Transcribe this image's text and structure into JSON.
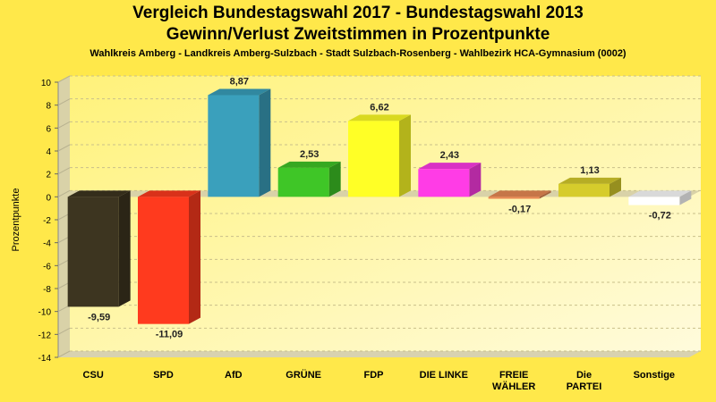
{
  "chart_data": {
    "type": "bar",
    "title": "Vergleich Bundestagswahl 2017 - Bundestagswahl 2013",
    "subtitle": "Gewinn/Verlust Zweitstimmen in Prozentpunkte",
    "caption": "Wahlkreis Amberg - Landkreis Amberg-Sulzbach - Stadt Sulzbach-Rosenberg - Wahlbezirk HCA-Gymnasium (0002)",
    "ylabel": "Prozentpunkte",
    "xlabel": "",
    "ylim": [
      -14,
      10
    ],
    "yticks": [
      "10",
      "8",
      "6",
      "4",
      "2",
      "0",
      "-2",
      "-4",
      "-6",
      "-8",
      "-10",
      "-12",
      "-14"
    ],
    "grid": true,
    "categories": [
      [
        "CSU"
      ],
      [
        "SPD"
      ],
      [
        "AfD"
      ],
      [
        "GRÜNE"
      ],
      [
        "FDP"
      ],
      [
        "DIE LINKE"
      ],
      [
        "FREIE",
        "WÄHLER"
      ],
      [
        "Die",
        "PARTEI"
      ],
      [
        "Sonstige"
      ]
    ],
    "values": [
      -9.59,
      -11.09,
      8.87,
      2.53,
      6.62,
      2.43,
      -0.17,
      1.13,
      -0.72
    ],
    "value_labels": [
      "-9,59",
      "-11,09",
      "8,87",
      "2,53",
      "6,62",
      "2,43",
      "-0,17",
      "1,13",
      "-0,72"
    ],
    "colors": [
      "#3d3520",
      "#ff3a1e",
      "#3aa0bc",
      "#3fc627",
      "#ffff26",
      "#ff3ce6",
      "#e98a55",
      "#d6cc2c",
      "#ffffff"
    ]
  }
}
